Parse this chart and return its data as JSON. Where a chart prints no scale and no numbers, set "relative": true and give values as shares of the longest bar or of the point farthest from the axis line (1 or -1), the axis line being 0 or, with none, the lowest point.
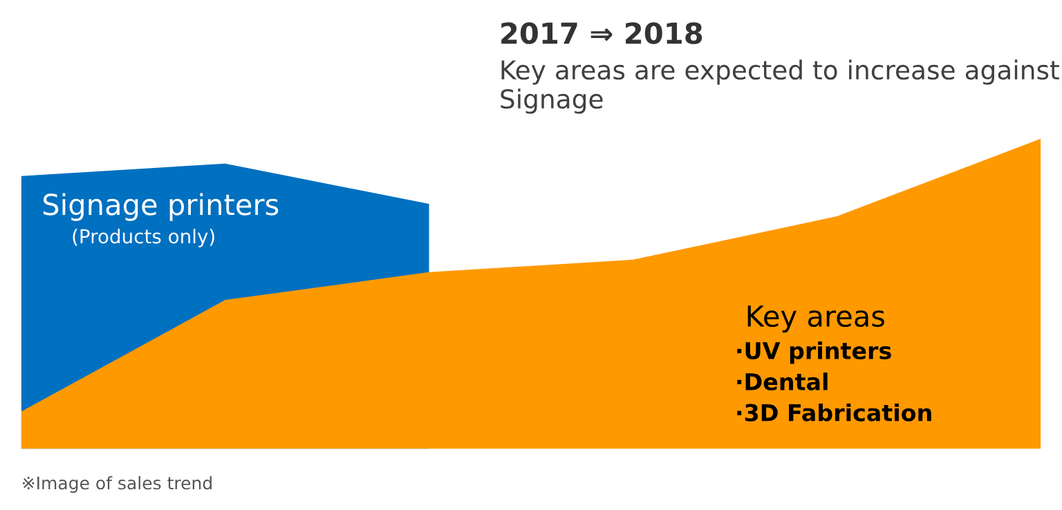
{
  "chart_data": {
    "type": "area",
    "relative": true,
    "title": "2017 ⇒ 2018",
    "subtitle": "Key areas are expected to increase against Signage",
    "categories": [
      null,
      null,
      null,
      null,
      null,
      null
    ],
    "series": [
      {
        "name": "Signage printers",
        "color": "#0070c0",
        "values": [
          0.88,
          0.92,
          0.79,
          null,
          null,
          null
        ]
      },
      {
        "name": "Key areas",
        "color": "#ff9900",
        "values": [
          0.12,
          0.48,
          0.57,
          0.61,
          0.75,
          1
        ]
      }
    ],
    "annotations": [
      "(Products only)",
      "·UV printers",
      "·Dental",
      "·3D Fabrication",
      "※Image of sales trend"
    ],
    "legend": false
  }
}
